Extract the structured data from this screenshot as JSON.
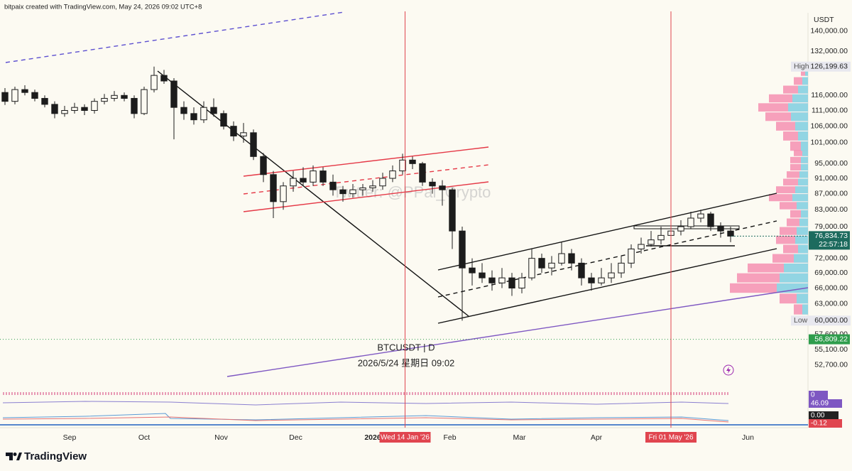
{
  "header": "bitpaix created with TradingView.com, May 24, 2026 09:02 UTC+8",
  "chart_data": {
    "type": "candlestick",
    "symbol": "BTCUSDT | D",
    "date_caption": "2026/5/24 星期日 09:02",
    "watermark": "Twitter: @PPal_Crypto",
    "y_unit": "USDT",
    "log_scale": true,
    "color": "#1c1c1c",
    "ylim": [
      50000,
      145000
    ],
    "yticks": [
      {
        "value": 140000,
        "label": "140,000.00"
      },
      {
        "value": 132000,
        "label": "132,000.00"
      },
      {
        "value": 116000,
        "label": "116,000.00"
      },
      {
        "value": 111000,
        "label": "111,000.00"
      },
      {
        "value": 106000,
        "label": "106,000.00"
      },
      {
        "value": 101000,
        "label": "101,000.00"
      },
      {
        "value": 95000,
        "label": "95,000.00"
      },
      {
        "value": 91000,
        "label": "91,000.00"
      },
      {
        "value": 87000,
        "label": "87,000.00"
      },
      {
        "value": 83000,
        "label": "83,000.00"
      },
      {
        "value": 79000,
        "label": "79,000.00"
      },
      {
        "value": 72000,
        "label": "72,000.00"
      },
      {
        "value": 69000,
        "label": "69,000.00"
      },
      {
        "value": 66000,
        "label": "66,000.00"
      },
      {
        "value": 63000,
        "label": "63,000.00"
      },
      {
        "value": 57600,
        "label": "57,600.00"
      },
      {
        "value": 55100,
        "label": "55,100.00"
      },
      {
        "value": 52700,
        "label": "52,700.00"
      }
    ],
    "xlim": [
      -0.5,
      80.5
    ],
    "xticks": [
      {
        "value": 6.5,
        "label": "Sep"
      },
      {
        "value": 14,
        "label": "Oct"
      },
      {
        "value": 21.75,
        "label": "Nov"
      },
      {
        "value": 29.25,
        "label": "Dec"
      },
      {
        "value": 37,
        "label": "2026"
      },
      {
        "value": 44.75,
        "label": "Feb"
      },
      {
        "value": 51.75,
        "label": "Mar"
      },
      {
        "value": 59.5,
        "label": "Apr"
      },
      {
        "value": 74.75,
        "label": "Jun"
      }
    ],
    "vlines": [
      {
        "value": 40.25,
        "label": "Wed 14 Jan '26"
      },
      {
        "value": 67,
        "label": "Fri 01 May '26"
      }
    ],
    "open": [
      117000,
      114000,
      118000,
      117000,
      115000,
      113000,
      110000,
      111000,
      112000,
      111000,
      114000,
      115000,
      116000,
      115000,
      110000,
      118000,
      123000,
      121000,
      112000,
      110000,
      108000,
      112000,
      110000,
      106000,
      103000,
      104000,
      97000,
      92000,
      85000,
      89000,
      91000,
      90000,
      93000,
      90000,
      88000,
      87000,
      88000,
      88500,
      89000,
      91000,
      93000,
      96000,
      95000,
      90000,
      89000,
      88000,
      78000,
      70000,
      69000,
      68000,
      67000,
      68000,
      66000,
      68000,
      72000,
      70000,
      71000,
      73000,
      71000,
      68000,
      67000,
      68000,
      69000,
      71000,
      74000,
      75000,
      76000,
      77000,
      78000,
      79000,
      81000,
      82000,
      79000,
      78000
    ],
    "high": [
      118500,
      119000,
      119500,
      118000,
      116000,
      114000,
      112500,
      113500,
      113000,
      115000,
      116500,
      117500,
      117000,
      116000,
      119000,
      126199.63,
      125000,
      122000,
      114000,
      112000,
      114000,
      115000,
      111000,
      107500,
      107000,
      105000,
      98000,
      93000,
      90000,
      93000,
      94000,
      94500,
      94000,
      92000,
      89000,
      89500,
      89500,
      90500,
      92500,
      94500,
      97800,
      97000,
      95500,
      91000,
      90500,
      88500,
      79000,
      72000,
      71000,
      69500,
      70000,
      69000,
      69000,
      74000,
      73000,
      72500,
      75500,
      74000,
      72000,
      69000,
      70000,
      71000,
      72500,
      75000,
      76500,
      78000,
      79000,
      79500,
      80500,
      82500,
      83000,
      82500,
      80000,
      79000
    ],
    "low": [
      112800,
      113000,
      116000,
      114000,
      112000,
      108500,
      109000,
      110000,
      109500,
      110000,
      113000,
      114000,
      114000,
      108500,
      109500,
      117000,
      120000,
      102000,
      108000,
      106500,
      107000,
      109000,
      105000,
      101500,
      101000,
      96000,
      90000,
      81000,
      83000,
      87500,
      89000,
      89000,
      89000,
      86500,
      85000,
      86000,
      86500,
      87500,
      88000,
      90000,
      92000,
      93500,
      89000,
      87000,
      84000,
      74000,
      60000,
      66500,
      67000,
      65500,
      66000,
      64500,
      65000,
      67500,
      69000,
      68500,
      70500,
      69500,
      66500,
      65500,
      66500,
      67000,
      68000,
      70000,
      73000,
      74500,
      75000,
      75500,
      77000,
      78500,
      80000,
      78000,
      76500,
      75500
    ],
    "close": [
      114000,
      118000,
      117000,
      115000,
      113000,
      110000,
      111000,
      112000,
      111000,
      114000,
      115000,
      116000,
      115000,
      110000,
      118000,
      123000,
      121000,
      112000,
      110000,
      108000,
      112000,
      110000,
      106000,
      103000,
      104000,
      97000,
      92000,
      85000,
      89000,
      91000,
      90000,
      93000,
      90000,
      88000,
      87000,
      88000,
      88500,
      89000,
      91000,
      93000,
      96000,
      95000,
      90000,
      89000,
      88000,
      78000,
      70000,
      69000,
      68000,
      67000,
      68000,
      66000,
      68000,
      72000,
      70000,
      71000,
      73000,
      71000,
      68000,
      67000,
      68000,
      69000,
      71000,
      74000,
      75000,
      76000,
      77000,
      78000,
      79000,
      81000,
      82000,
      79000,
      78000,
      76834.73
    ],
    "high_marker": {
      "text": "High",
      "value": 126199.63,
      "label": "126,199.63"
    },
    "low_marker": {
      "text": "Low",
      "value": 60000,
      "label": "60,000.00"
    },
    "last_price": {
      "value": 76834.73,
      "label": "76,834.73",
      "countdown": "22:57:18",
      "color": "#1d6b5e"
    },
    "level": {
      "value": 56809.22,
      "label": "56,809.22",
      "color": "#2e9d4c"
    },
    "volume_profile": {
      "colors": [
        "#f48fb1",
        "#80deea"
      ],
      "prices": [
        62000,
        64000,
        66000,
        68000,
        70000,
        72000,
        74000,
        76000,
        78000,
        80000,
        82000,
        84000,
        86000,
        88000,
        90000,
        92000,
        94000,
        96000,
        98000,
        100000,
        103000,
        106000,
        109000,
        112000,
        115000,
        118000,
        121000,
        124000
      ],
      "values": [
        20,
        40,
        110,
        100,
        85,
        50,
        35,
        45,
        40,
        30,
        25,
        40,
        55,
        45,
        35,
        30,
        25,
        25,
        20,
        25,
        35,
        45,
        60,
        70,
        55,
        35,
        20,
        10
      ]
    }
  },
  "indicator_badges": [
    "0",
    "46.09",
    "0.00",
    "-0.12"
  ],
  "footer": "TradingView"
}
